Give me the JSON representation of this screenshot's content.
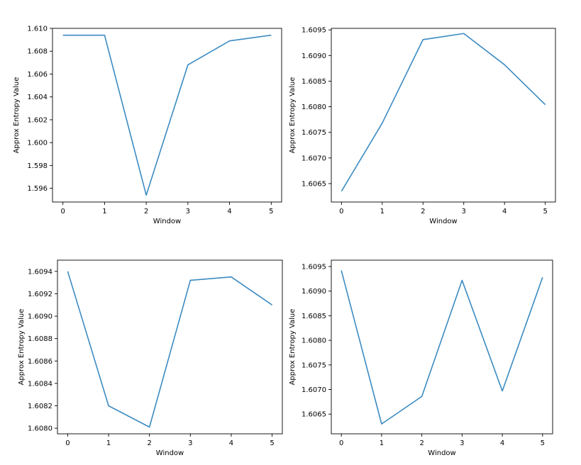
{
  "chart_data": [
    {
      "type": "line",
      "xlabel": "Window",
      "ylabel": "Approx Entropy Value",
      "x": [
        0,
        1,
        2,
        3,
        4,
        5
      ],
      "xticks": [
        "0",
        "1",
        "2",
        "3",
        "4",
        "5"
      ],
      "xlim": [
        -0.25,
        5.25
      ],
      "ylim": [
        1.5948,
        1.61
      ],
      "yticks": [
        "1.596",
        "1.598",
        "1.600",
        "1.602",
        "1.604",
        "1.606",
        "1.608",
        "1.610"
      ],
      "series": [
        {
          "values": [
            1.6094,
            1.6094,
            1.5954,
            1.6068,
            1.6089,
            1.6094
          ],
          "color": "#3b8bc2"
        }
      ],
      "grid": false
    },
    {
      "type": "line",
      "xlabel": "Window",
      "ylabel": "Approx Entropy Value",
      "x": [
        0,
        1,
        2,
        3,
        4,
        5
      ],
      "xticks": [
        "0",
        "1",
        "2",
        "3",
        "4",
        "5"
      ],
      "xlim": [
        -0.25,
        5.25
      ],
      "ylim": [
        1.60614,
        1.60953
      ],
      "yticks": [
        "1.6065",
        "1.6070",
        "1.6075",
        "1.6080",
        "1.6085",
        "1.6090",
        "1.6095"
      ],
      "series": [
        {
          "values": [
            1.60635,
            1.60768,
            1.60931,
            1.60943,
            1.60882,
            1.60804
          ],
          "color": "#3b8bc2"
        }
      ],
      "grid": false
    },
    {
      "type": "line",
      "xlabel": "Window",
      "ylabel": "Approx Entropy Value",
      "x": [
        0,
        1,
        2,
        3,
        4,
        5
      ],
      "xticks": [
        "0",
        "1",
        "2",
        "3",
        "4",
        "5"
      ],
      "xlim": [
        -0.25,
        5.25
      ],
      "ylim": [
        1.60795,
        1.6095
      ],
      "yticks": [
        "1.6080",
        "1.6082",
        "1.6084",
        "1.6086",
        "1.6088",
        "1.6090",
        "1.6092",
        "1.6094"
      ],
      "series": [
        {
          "values": [
            1.6094,
            1.6082,
            1.60801,
            1.60932,
            1.60935,
            1.6091
          ],
          "color": "#3b8bc2"
        }
      ],
      "grid": false
    },
    {
      "type": "line",
      "xlabel": "Window",
      "ylabel": "Approx Entropy Value",
      "x": [
        0,
        1,
        2,
        3,
        4,
        5
      ],
      "xticks": [
        "0",
        "1",
        "2",
        "3",
        "4",
        "5"
      ],
      "xlim": [
        -0.25,
        5.25
      ],
      "ylim": [
        1.6061,
        1.60963
      ],
      "yticks": [
        "1.6065",
        "1.6070",
        "1.6075",
        "1.6080",
        "1.6085",
        "1.6090",
        "1.6095"
      ],
      "series": [
        {
          "values": [
            1.60942,
            1.6063,
            1.60686,
            1.60922,
            1.60697,
            1.60928
          ],
          "color": "#3b8bc2"
        }
      ],
      "grid": false
    }
  ]
}
